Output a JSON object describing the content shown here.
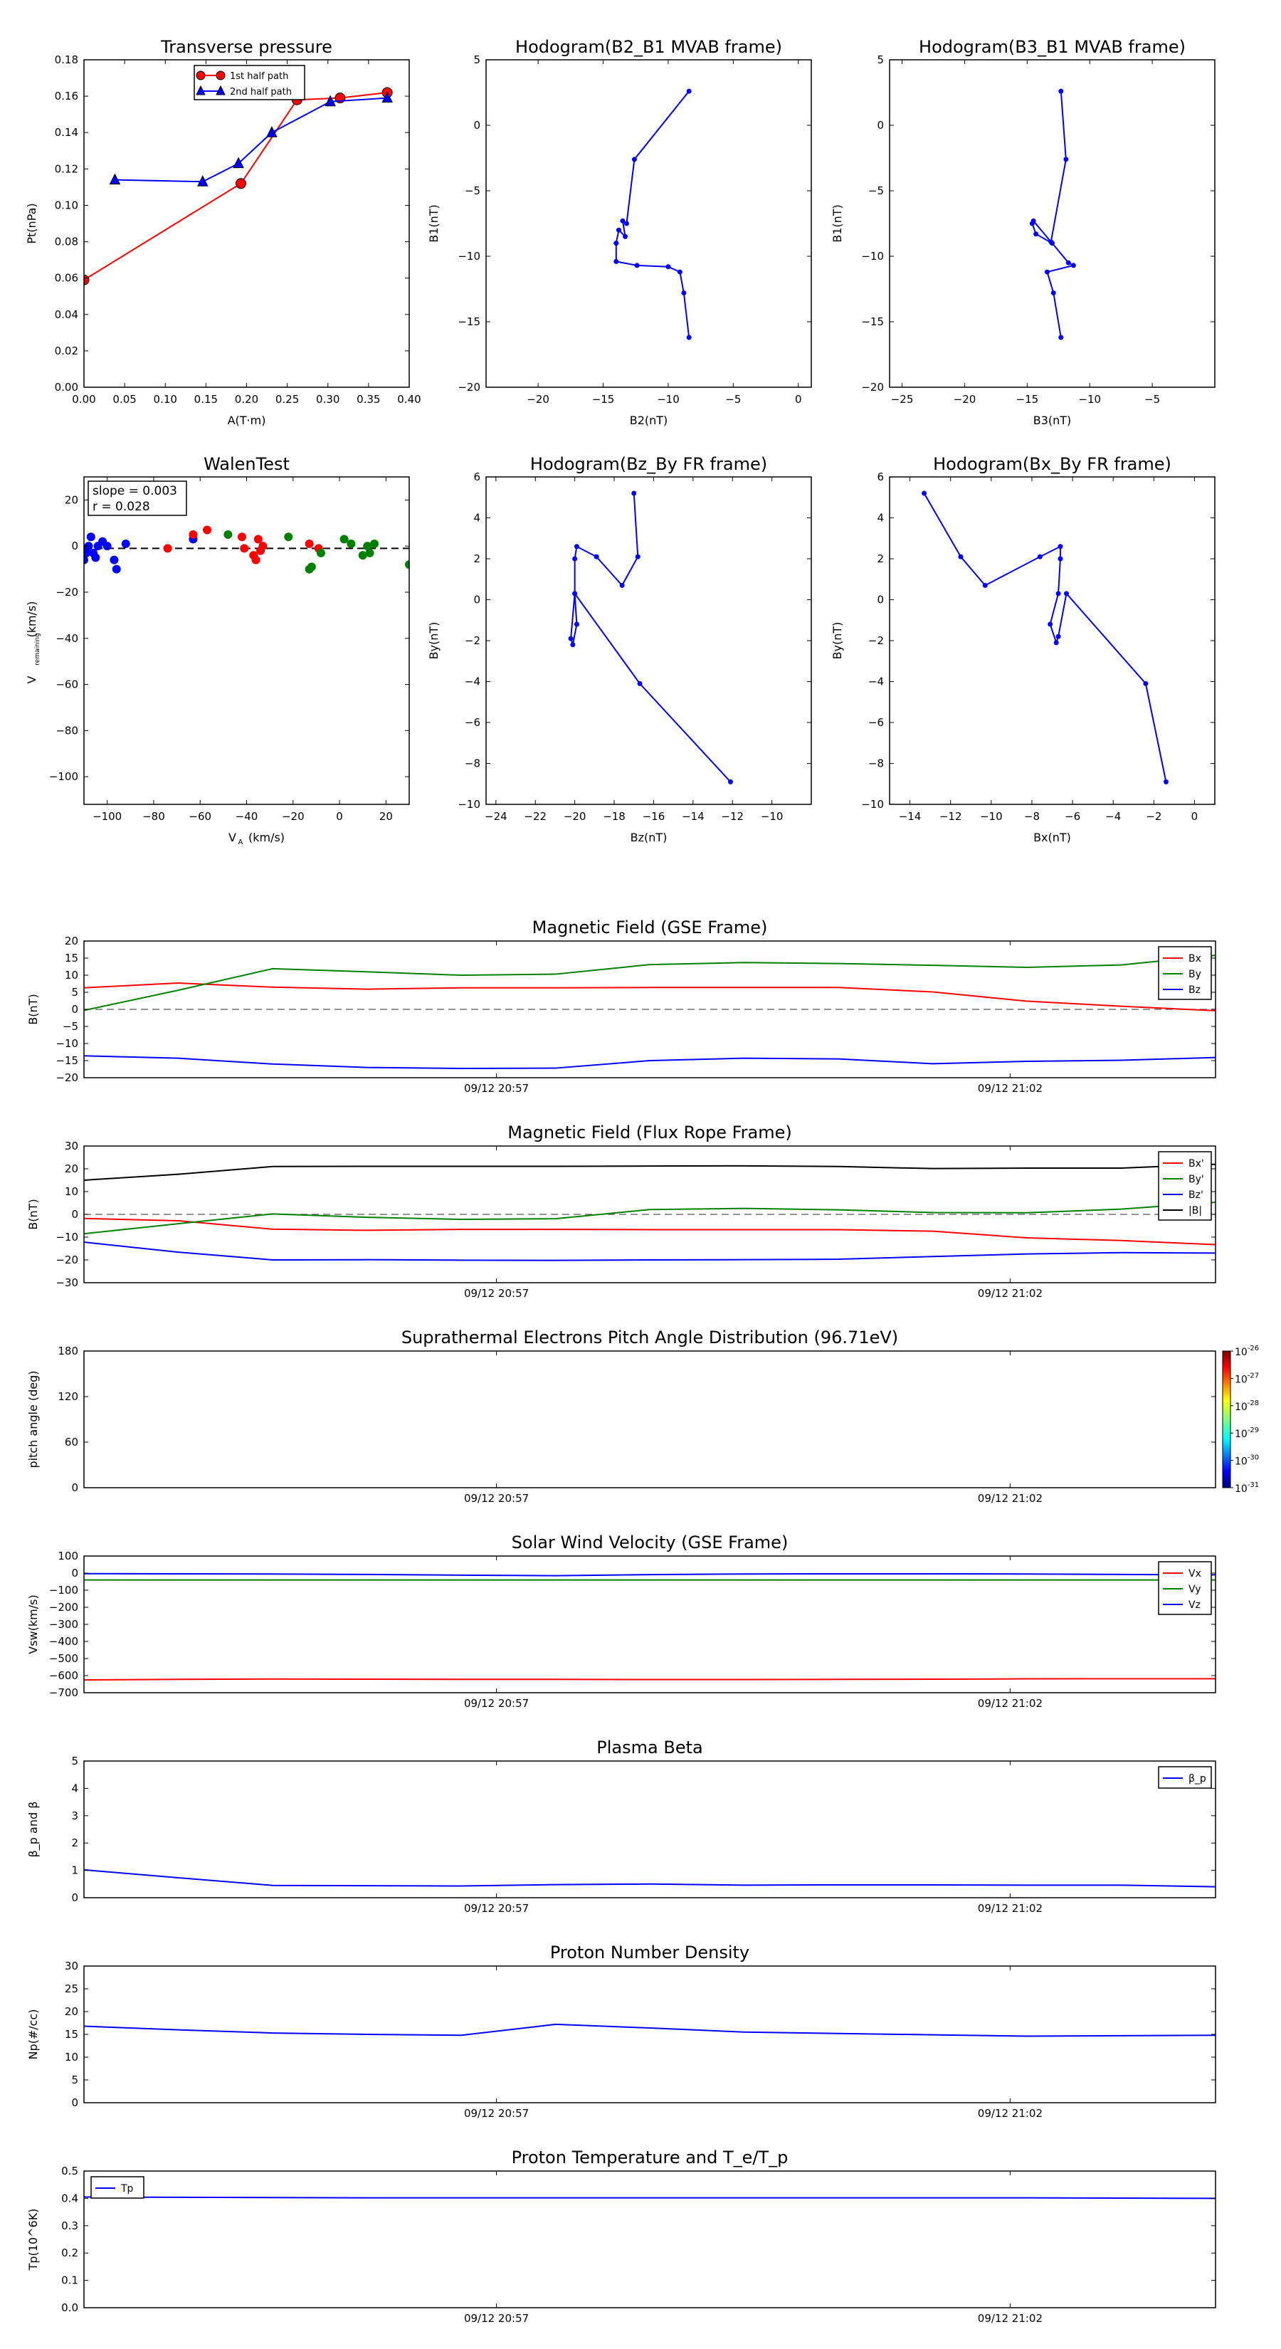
{
  "chart_data": [
    {
      "id": "tp",
      "type": "line",
      "title": "Transverse pressure",
      "xlabel": "A(T·m)",
      "ylabel": "Pt(nPa)",
      "xlim": [
        0,
        0.4
      ],
      "ylim": [
        0,
        0.18
      ],
      "xticks": [
        "0.00",
        "0.05",
        "0.10",
        "0.15",
        "0.20",
        "0.25",
        "0.30",
        "0.35",
        "0.40"
      ],
      "yticks": [
        "0.00",
        "0.02",
        "0.04",
        "0.06",
        "0.08",
        "0.10",
        "0.12",
        "0.14",
        "0.16",
        "0.18"
      ],
      "legend": [
        "1st half path",
        "2nd half path"
      ],
      "series": [
        {
          "name": "1st half path",
          "color": "#ff0000",
          "marker": "circle",
          "x": [
            0.0,
            0.193,
            0.262,
            0.315,
            0.373
          ],
          "y": [
            0.059,
            0.112,
            0.158,
            0.159,
            0.162
          ]
        },
        {
          "name": "2nd half path",
          "color": "#0000ff",
          "marker": "triangle",
          "x": [
            0.038,
            0.146,
            0.19,
            0.231,
            0.303,
            0.373
          ],
          "y": [
            0.114,
            0.113,
            0.123,
            0.14,
            0.157,
            0.159
          ]
        }
      ]
    },
    {
      "id": "h1",
      "type": "line",
      "title": "Hodogram(B2_B1 MVAB frame)",
      "xlabel": "B2(nT)",
      "ylabel": "B1(nT)",
      "xlim": [
        -24,
        1
      ],
      "ylim": [
        -20,
        5
      ],
      "xticks": [
        "−20",
        "−15",
        "−10",
        "−5",
        "0"
      ],
      "xtickvals": [
        -20,
        -15,
        -10,
        -5,
        0
      ],
      "yticks": [
        "−20",
        "−15",
        "−10",
        "−5",
        "0",
        "5"
      ],
      "ytickvals": [
        -20,
        -15,
        -10,
        -5,
        0,
        5
      ],
      "series": [
        {
          "color": "#0000ff",
          "x": [
            -8.4,
            -8.8,
            -9.1,
            -10.0,
            -12.4,
            -14.0,
            -14.0,
            -13.8,
            -13.3,
            -13.5,
            -13.2,
            -12.6,
            -8.4
          ],
          "y": [
            -16.2,
            -12.8,
            -11.2,
            -10.8,
            -10.7,
            -10.4,
            -9.0,
            -8.0,
            -8.5,
            -7.3,
            -7.5,
            -2.6,
            2.6
          ]
        }
      ]
    },
    {
      "id": "h2",
      "type": "line",
      "title": "Hodogram(B3_B1 MVAB frame)",
      "xlabel": "B3(nT)",
      "ylabel": "B1(nT)",
      "xlim": [
        -26,
        0
      ],
      "ylim": [
        -20,
        5
      ],
      "xticks": [
        "−25",
        "−20",
        "−15",
        "−10",
        "−5"
      ],
      "xtickvals": [
        -25,
        -20,
        -15,
        -10,
        -5
      ],
      "yticks": [
        "−20",
        "−15",
        "−10",
        "−5",
        "0",
        "5"
      ],
      "ytickvals": [
        -20,
        -15,
        -10,
        -5,
        0,
        5
      ],
      "series": [
        {
          "color": "#0000ff",
          "x": [
            -12.3,
            -12.9,
            -13.4,
            -11.3,
            -11.7,
            -13.0,
            -14.3,
            -14.6,
            -14.5,
            -13.1,
            -11.9,
            -12.3
          ],
          "y": [
            -16.2,
            -12.8,
            -11.2,
            -10.7,
            -10.5,
            -9.0,
            -8.3,
            -7.5,
            -7.3,
            -8.9,
            -2.6,
            2.6
          ]
        }
      ]
    },
    {
      "id": "walen",
      "type": "scatter",
      "title": "WalenTest",
      "xlabel": "V_A(km/s)",
      "ylabel": "V_remaining(km/s)",
      "xlim": [
        -110,
        30
      ],
      "ylim": [
        -112,
        30
      ],
      "xticks": [
        "−100",
        "−80",
        "−60",
        "−40",
        "−20",
        "0",
        "20"
      ],
      "xtickvals": [
        -100,
        -80,
        -60,
        -40,
        -20,
        0,
        20
      ],
      "yticks": [
        "−100",
        "−80",
        "−60",
        "−40",
        "−20",
        "0",
        "20"
      ],
      "ytickvals": [
        -100,
        -80,
        -60,
        -40,
        -20,
        0,
        20
      ],
      "annotation": [
        "slope = 0.003",
        "r = 0.028"
      ],
      "fit_line": [
        -1,
        -1
      ],
      "series": [
        {
          "color": "#0000ff",
          "x": [
            -110,
            -109,
            -108,
            -107,
            -106,
            -105,
            -104,
            -102,
            -100,
            -97,
            -96,
            -92,
            -63
          ],
          "y": [
            -6,
            -3,
            0,
            4,
            -3,
            -5,
            0,
            2,
            0,
            -6,
            -10,
            1,
            3
          ]
        },
        {
          "color": "#ff0000",
          "x": [
            -74,
            -63,
            -57,
            -42,
            -41,
            -37,
            -36,
            -35,
            -34,
            -33,
            -13,
            -9
          ],
          "y": [
            -1,
            5,
            7,
            4,
            -1,
            -4,
            -6,
            3,
            -2,
            0,
            1,
            -1
          ]
        },
        {
          "color": "#008000",
          "x": [
            -48,
            -22,
            -13,
            -12,
            -8,
            2,
            5,
            10,
            12,
            13,
            15,
            30
          ],
          "y": [
            5,
            4,
            -10,
            -9,
            -3,
            3,
            1,
            -4,
            0,
            -3,
            1,
            -8
          ]
        }
      ]
    },
    {
      "id": "h3",
      "type": "line",
      "title": "Hodogram(Bz_By FR frame)",
      "xlabel": "Bz(nT)",
      "ylabel": "By(nT)",
      "xlim": [
        -24.5,
        -8
      ],
      "ylim": [
        -10,
        6
      ],
      "xticks": [
        "−24",
        "−22",
        "−20",
        "−18",
        "−16",
        "−14",
        "−12",
        "−10"
      ],
      "xtickvals": [
        -24,
        -22,
        -20,
        -18,
        -16,
        -14,
        -12,
        -10
      ],
      "yticks": [
        "−10",
        "−8",
        "−6",
        "−4",
        "−2",
        "0",
        "2",
        "4",
        "6"
      ],
      "ytickvals": [
        -10,
        -8,
        -6,
        -4,
        -2,
        0,
        2,
        4,
        6
      ],
      "series": [
        {
          "color": "#0000ff",
          "x": [
            -12.1,
            -16.7,
            -20.0,
            -19.9,
            -20.1,
            -20.2,
            -20.0,
            -20.0,
            -19.9,
            -18.9,
            -17.6,
            -16.8,
            -17.0
          ],
          "y": [
            -8.9,
            -4.1,
            0.3,
            -1.2,
            -2.2,
            -1.9,
            0.3,
            2.0,
            2.6,
            2.1,
            0.7,
            2.1,
            5.2
          ]
        }
      ]
    },
    {
      "id": "h4",
      "type": "line",
      "title": "Hodogram(Bx_By FR frame)",
      "xlabel": "Bx(nT)",
      "ylabel": "By(nT)",
      "xlim": [
        -15,
        1
      ],
      "ylim": [
        -10,
        6
      ],
      "xticks": [
        "−14",
        "−12",
        "−10",
        "−8",
        "−6",
        "−4",
        "−2",
        "0"
      ],
      "xtickvals": [
        -14,
        -12,
        -10,
        -8,
        -6,
        -4,
        -2,
        0
      ],
      "yticks": [
        "−10",
        "−8",
        "−6",
        "−4",
        "−2",
        "0",
        "2",
        "4",
        "6"
      ],
      "ytickvals": [
        -10,
        -8,
        -6,
        -4,
        -2,
        0,
        2,
        4,
        6
      ],
      "series": [
        {
          "color": "#0000ff",
          "x": [
            -1.4,
            -2.4,
            -6.3,
            -6.7,
            -6.8,
            -7.1,
            -6.7,
            -6.6,
            -6.6,
            -7.6,
            -10.3,
            -11.5,
            -13.3
          ],
          "y": [
            -8.9,
            -4.1,
            0.3,
            -1.8,
            -2.1,
            -1.2,
            0.3,
            2.0,
            2.6,
            2.1,
            0.7,
            2.1,
            5.2
          ]
        }
      ]
    },
    {
      "id": "mf_gse",
      "type": "line",
      "title": "Magnetic Field (GSE Frame)",
      "ylabel": "B(nT)",
      "ylim": [
        -20,
        20
      ],
      "yticks": [
        "−20",
        "−15",
        "−10",
        "−5",
        "0",
        "5",
        "10",
        "15",
        "20"
      ],
      "ytickvals": [
        -20,
        -15,
        -10,
        -5,
        0,
        5,
        10,
        15,
        20
      ],
      "xticks": [
        "09/12 20:57",
        "09/12 21:02"
      ],
      "zero_line": true,
      "legend_loc": "right",
      "series": [
        {
          "name": "Bx",
          "color": "#ff0000",
          "values": [
            6.3,
            7.7,
            6.5,
            5.9,
            6.3,
            6.3,
            6.4,
            6.4,
            6.4,
            5.1,
            2.4,
            0.9,
            -0.4
          ]
        },
        {
          "name": "By",
          "color": "#008000",
          "values": [
            -0.3,
            5.6,
            11.9,
            11.0,
            10.0,
            10.3,
            13.1,
            13.7,
            13.4,
            12.9,
            12.3,
            13.0,
            15.8
          ]
        },
        {
          "name": "Bz",
          "color": "#0000ff",
          "values": [
            -13.6,
            -14.3,
            -16.0,
            -17.0,
            -17.3,
            -17.2,
            -15.0,
            -14.3,
            -14.5,
            -15.9,
            -15.2,
            -14.9,
            -14.1
          ]
        }
      ]
    },
    {
      "id": "mf_fr",
      "type": "line",
      "title": "Magnetic Field (Flux Rope Frame)",
      "ylabel": "B(nT)",
      "ylim": [
        -30,
        30
      ],
      "yticks": [
        "−30",
        "−20",
        "−10",
        "0",
        "10",
        "20",
        "30"
      ],
      "ytickvals": [
        -30,
        -20,
        -10,
        0,
        10,
        20,
        30
      ],
      "xticks": [
        "09/12 20:57",
        "09/12 21:02"
      ],
      "zero_line": true,
      "legend_loc": "right",
      "series": [
        {
          "name": "Bx'",
          "color": "#ff0000",
          "values": [
            -1.8,
            -2.8,
            -6.5,
            -7.0,
            -6.6,
            -6.6,
            -6.7,
            -6.7,
            -6.7,
            -7.4,
            -10.3,
            -11.5,
            -13.3
          ]
        },
        {
          "name": "By'",
          "color": "#008000",
          "values": [
            -8.5,
            -4.1,
            0.2,
            -1.3,
            -2.2,
            -1.9,
            2.1,
            2.6,
            2.0,
            0.8,
            0.7,
            2.3,
            5.3
          ]
        },
        {
          "name": "Bz'",
          "color": "#0000ff",
          "values": [
            -12.2,
            -16.6,
            -20.0,
            -19.9,
            -20.1,
            -20.2,
            -20.0,
            -19.9,
            -19.7,
            -18.5,
            -17.4,
            -16.8,
            -17.0
          ]
        },
        {
          "name": "|B|",
          "color": "#000000",
          "values": [
            15.0,
            17.6,
            21.0,
            21.1,
            21.1,
            21.1,
            21.2,
            21.3,
            21.0,
            20.1,
            20.3,
            20.3,
            22.0
          ]
        }
      ]
    },
    {
      "id": "pad",
      "type": "heatmap",
      "title": "Suprathermal Electrons Pitch Angle Distribution (96.71eV)",
      "ylabel": "pitch angle (deg)",
      "ylim": [
        0,
        180
      ],
      "yticks": [
        "0",
        "60",
        "120",
        "180"
      ],
      "ytickvals": [
        0,
        60,
        120,
        180
      ],
      "xticks": [
        "09/12 20:57",
        "09/12 21:02"
      ],
      "colorbar_ticks": [
        "-26",
        "-27",
        "-28",
        "-29",
        "-30",
        "-31"
      ],
      "colorbar_base": "10"
    },
    {
      "id": "vsw",
      "type": "line",
      "title": "Solar Wind Velocity (GSE Frame)",
      "ylabel": "Vsw(km/s)",
      "ylim": [
        -700,
        100
      ],
      "yticks": [
        "−700",
        "−600",
        "−500",
        "−400",
        "−300",
        "−200",
        "−100",
        "0",
        "100"
      ],
      "ytickvals": [
        -700,
        -600,
        -500,
        -400,
        -300,
        -200,
        -100,
        0,
        100
      ],
      "xticks": [
        "09/12 20:57",
        "09/12 21:02"
      ],
      "legend_loc": "right",
      "series": [
        {
          "name": "Vx",
          "color": "#ff0000",
          "values": [
            -625,
            -622,
            -620,
            -621,
            -622,
            -622,
            -623,
            -623,
            -622,
            -621,
            -619,
            -618,
            -618
          ]
        },
        {
          "name": "Vy",
          "color": "#008000",
          "values": [
            -40,
            -40,
            -40,
            -40,
            -40,
            -40,
            -40,
            -40,
            -40,
            -40,
            -40,
            -40,
            -40
          ]
        },
        {
          "name": "Vz",
          "color": "#0000ff",
          "values": [
            -3,
            -4,
            -5,
            -8,
            -12,
            -15,
            -9,
            -5,
            -4,
            -4,
            -5,
            -8,
            -10
          ]
        }
      ]
    },
    {
      "id": "beta",
      "type": "line",
      "title": "Plasma Beta",
      "ylabel": "β_p and β",
      "ylim": [
        0,
        5
      ],
      "yticks": [
        "0",
        "1",
        "2",
        "3",
        "4",
        "5"
      ],
      "ytickvals": [
        0,
        1,
        2,
        3,
        4,
        5
      ],
      "xticks": [
        "09/12 20:57",
        "09/12 21:02"
      ],
      "legend_loc": "right",
      "series": [
        {
          "name": "β_p",
          "color": "#0000ff",
          "values": [
            1.02,
            0.73,
            0.45,
            0.44,
            0.43,
            0.48,
            0.5,
            0.46,
            0.47,
            0.47,
            0.46,
            0.46,
            0.4
          ]
        }
      ]
    },
    {
      "id": "np",
      "type": "line",
      "title": "Proton Number Density",
      "ylabel": "Np(#/cc)",
      "ylim": [
        0,
        30
      ],
      "yticks": [
        "0",
        "5",
        "10",
        "15",
        "20",
        "25",
        "30"
      ],
      "ytickvals": [
        0,
        5,
        10,
        15,
        20,
        25,
        30
      ],
      "xticks": [
        "09/12 20:57",
        "09/12 21:02"
      ],
      "series": [
        {
          "color": "#0000ff",
          "values": [
            16.8,
            16.0,
            15.3,
            15.0,
            14.8,
            17.2,
            16.4,
            15.5,
            15.2,
            14.9,
            14.6,
            14.7,
            14.8
          ]
        }
      ]
    },
    {
      "id": "tpp",
      "type": "line",
      "title": "Proton Temperature and T_e/T_p",
      "ylabel": "Tp(10^6K)",
      "ylim": [
        0,
        0.5
      ],
      "yticks": [
        "0.0",
        "0.1",
        "0.2",
        "0.3",
        "0.4",
        "0.5"
      ],
      "ytickvals": [
        0,
        0.1,
        0.2,
        0.3,
        0.4,
        0.5
      ],
      "xticks": [
        "09/12 20:57",
        "09/12 21:02"
      ],
      "legend_loc": "left",
      "series": [
        {
          "name": "Tp",
          "color": "#0000ff",
          "values": [
            0.405,
            0.404,
            0.403,
            0.402,
            0.402,
            0.402,
            0.402,
            0.402,
            0.402,
            0.402,
            0.402,
            0.401,
            0.4
          ]
        }
      ]
    }
  ]
}
